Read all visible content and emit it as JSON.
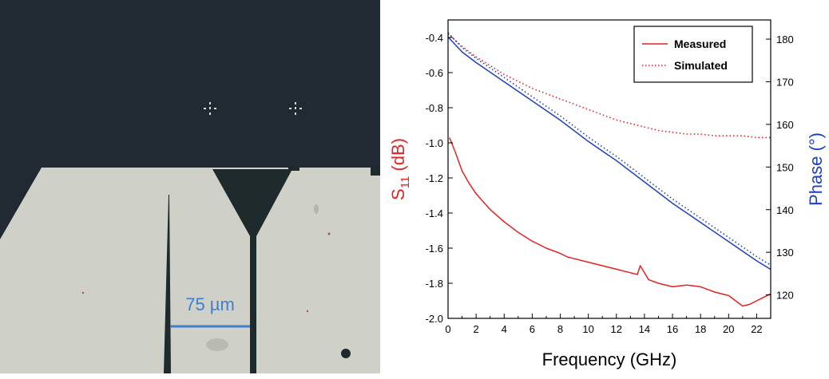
{
  "photo": {
    "scale_label": "75 µm",
    "colors": {
      "background": "#212a33",
      "substrate": "#cfd0c8",
      "scale": "#3f7fcf"
    }
  },
  "chart_data": {
    "type": "line",
    "x_ticks": [
      "0",
      "2",
      "4",
      "6",
      "8",
      "10",
      "12",
      "14",
      "16",
      "18",
      "20",
      "22"
    ],
    "xlim": [
      0,
      23
    ],
    "xlabel": "Frequency (GHz)",
    "ylabel_left": "S11 (dB)",
    "ylabel_left_main": "S",
    "ylabel_left_sub": "11",
    "ylabel_left_unit": "(dB)",
    "ylabel_right": "Phase (°)",
    "ylim_left": [
      -2.0,
      -0.3
    ],
    "yticks_left": [
      "-0.4",
      "-0.6",
      "-0.8",
      "-1.0",
      "-1.2",
      "-1.4",
      "-1.6",
      "-1.8",
      "-2.0"
    ],
    "ylim_right": [
      114.5,
      184.5
    ],
    "yticks_right": [
      "180",
      "170",
      "160",
      "150",
      "140",
      "130",
      "120"
    ],
    "legend": {
      "position": "top-right",
      "entries": [
        "Measured",
        "Simulated"
      ]
    },
    "series": [
      {
        "name": "Measured",
        "style": "solid",
        "axis": "left",
        "color": "#e32222",
        "x": [
          0.1,
          0.5,
          1,
          1.5,
          2,
          3,
          4,
          5,
          6,
          7,
          8,
          8.5,
          9,
          10,
          11,
          12,
          13,
          13.5,
          13.7,
          14,
          14.3,
          15,
          16,
          17,
          18,
          19,
          20,
          20.5,
          21,
          21.5,
          22,
          22.5,
          23
        ],
        "y": [
          -0.97,
          -1.05,
          -1.16,
          -1.23,
          -1.29,
          -1.38,
          -1.45,
          -1.51,
          -1.56,
          -1.6,
          -1.63,
          -1.65,
          -1.66,
          -1.68,
          -1.7,
          -1.72,
          -1.74,
          -1.75,
          -1.7,
          -1.74,
          -1.78,
          -1.8,
          -1.82,
          -1.81,
          -1.82,
          -1.85,
          -1.87,
          -1.9,
          -1.93,
          -1.92,
          -1.9,
          -1.88,
          -1.86
        ]
      },
      {
        "name": "Simulated",
        "style": "dotted",
        "axis": "left",
        "color": "#e32222",
        "x": [
          0,
          1,
          2,
          3,
          4,
          5,
          6,
          7,
          8,
          9,
          10,
          11,
          12,
          13,
          14,
          15,
          16,
          17,
          18,
          19,
          20,
          21,
          22,
          23
        ],
        "y": [
          -0.38,
          -0.45,
          -0.51,
          -0.56,
          -0.61,
          -0.65,
          -0.69,
          -0.72,
          -0.75,
          -0.78,
          -0.81,
          -0.84,
          -0.87,
          -0.89,
          -0.91,
          -0.93,
          -0.94,
          -0.95,
          -0.95,
          -0.96,
          -0.96,
          -0.96,
          -0.97,
          -0.97
        ]
      },
      {
        "name": "Measured phase",
        "style": "solid",
        "axis": "right",
        "color": "#1f3fc0",
        "x": [
          0,
          1,
          2,
          4,
          6,
          8,
          10,
          12,
          14,
          16,
          18,
          20,
          22,
          23
        ],
        "y": [
          180.5,
          177,
          174.5,
          170,
          165.5,
          161,
          156,
          151.5,
          146.5,
          141.5,
          137,
          132.5,
          128,
          126
        ]
      },
      {
        "name": "Simulated phase",
        "style": "dotted",
        "axis": "right",
        "color": "#1f3fc0",
        "x": [
          0,
          1,
          2,
          4,
          6,
          8,
          10,
          12,
          14,
          16,
          18,
          20,
          22,
          23
        ],
        "y": [
          181.5,
          178,
          175.5,
          171,
          166.5,
          162,
          157,
          152.5,
          147.5,
          142.5,
          138,
          133.5,
          129,
          127
        ]
      }
    ]
  }
}
